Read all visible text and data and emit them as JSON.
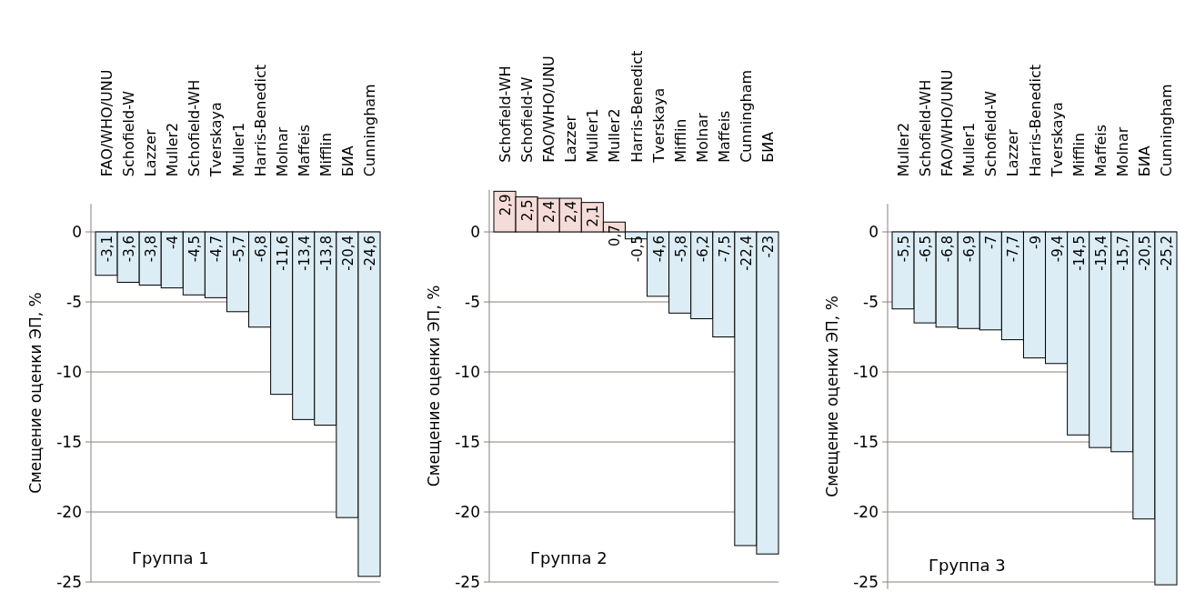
{
  "chart_data": [
    {
      "type": "bar",
      "ylabel": "Смещение оценки ЭП, %",
      "annotations": [
        "Группа 1"
      ],
      "categories": [
        "FAO/WHO/UNU",
        "Schofield-W",
        "Lazzer",
        "Muller2",
        "Schofield-WH",
        "Tverskaya",
        "Muller1",
        "Harris-Benedict",
        "Molnar",
        "Maffeis",
        "Mifflin",
        "БИА",
        "Cunningham"
      ],
      "values": [
        -3.1,
        -3.6,
        -3.8,
        -4,
        -4.5,
        -4.7,
        -5.7,
        -6.8,
        -11.6,
        -13.4,
        -13.8,
        -20.4,
        -24.6
      ],
      "value_labels": [
        "-3,1",
        "-3,6",
        "-3,8",
        "-4",
        "-4,5",
        "-4,7",
        "-5,7",
        "-6,8",
        "-11,6",
        "-13,4",
        "-13,8",
        "-20,4",
        "-24,6"
      ],
      "colors": [
        "#dcedf5",
        "#dcedf5",
        "#dcedf5",
        "#dcedf5",
        "#dcedf5",
        "#dcedf5",
        "#dcedf5",
        "#dcedf5",
        "#dcedf5",
        "#dcedf5",
        "#dcedf5",
        "#dcedf5",
        "#dcedf5"
      ],
      "ylim": [
        -25,
        2
      ],
      "yticks": [
        0,
        -5,
        -10,
        -15,
        -20,
        -25
      ],
      "grid": "y"
    },
    {
      "type": "bar",
      "ylabel": "Смещение оценки ЭП, %",
      "annotations": [
        "Группа 2"
      ],
      "categories": [
        "Schofield-WH",
        "Schofield-W",
        "FAO/WHO/UNU",
        "Lazzer",
        "Muller1",
        "Muller2",
        "Harris-Benedict",
        "Tverskaya",
        "Mifflin",
        "Molnar",
        "Maffeis",
        "Cunningham",
        "БИА"
      ],
      "values": [
        2.9,
        2.5,
        2.4,
        2.4,
        2.1,
        0.7,
        -0.5,
        -4.6,
        -5.8,
        -6.2,
        -7.5,
        -22.4,
        -23
      ],
      "value_labels": [
        "2,9",
        "2,5",
        "2,4",
        "2,4",
        "2,1",
        "0,7",
        "-0,5",
        "-4,6",
        "-5,8",
        "-6,2",
        "-7,5",
        "-22,4",
        "-23"
      ],
      "colors": [
        "#f6dcd8",
        "#f6dcd8",
        "#f6dcd8",
        "#f6dcd8",
        "#f6dcd8",
        "#f6dcd8",
        "#dcedf5",
        "#dcedf5",
        "#dcedf5",
        "#dcedf5",
        "#dcedf5",
        "#dcedf5",
        "#dcedf5"
      ],
      "ylim": [
        -25,
        3
      ],
      "yticks": [
        0,
        -5,
        -10,
        -15,
        -20,
        -25
      ],
      "grid": "y"
    },
    {
      "type": "bar",
      "ylabel": "Смещение оценки ЭП, %",
      "annotations": [
        "Группа 3"
      ],
      "categories": [
        "Muller2",
        "Schofield-WH",
        "FAO/WHO/UNU",
        "Muller1",
        "Schofield-W",
        "Lazzer",
        "Harris-Benedict",
        "Tverskaya",
        "Mifflin",
        "Maffeis",
        "Molnar",
        "БИА",
        "Cunningham"
      ],
      "values": [
        -5.5,
        -6.5,
        -6.8,
        -6.9,
        -7,
        -7.7,
        -9,
        -9.4,
        -14.5,
        -15.4,
        -15.7,
        -20.5,
        -25.2
      ],
      "value_labels": [
        "-5,5",
        "-6,5",
        "-6,8",
        "-6,9",
        "-7",
        "-7,7",
        "-9",
        "-9,4",
        "-14,5",
        "-15,4",
        "-15,7",
        "-20,5",
        "-25,2"
      ],
      "colors": [
        "#dcedf5",
        "#dcedf5",
        "#dcedf5",
        "#dcedf5",
        "#dcedf5",
        "#dcedf5",
        "#dcedf5",
        "#dcedf5",
        "#dcedf5",
        "#dcedf5",
        "#dcedf5",
        "#dcedf5",
        "#dcedf5"
      ],
      "ylim": [
        -25.5,
        2
      ],
      "yticks": [
        0,
        -5,
        -10,
        -15,
        -20,
        -25
      ],
      "grid": "y"
    }
  ]
}
